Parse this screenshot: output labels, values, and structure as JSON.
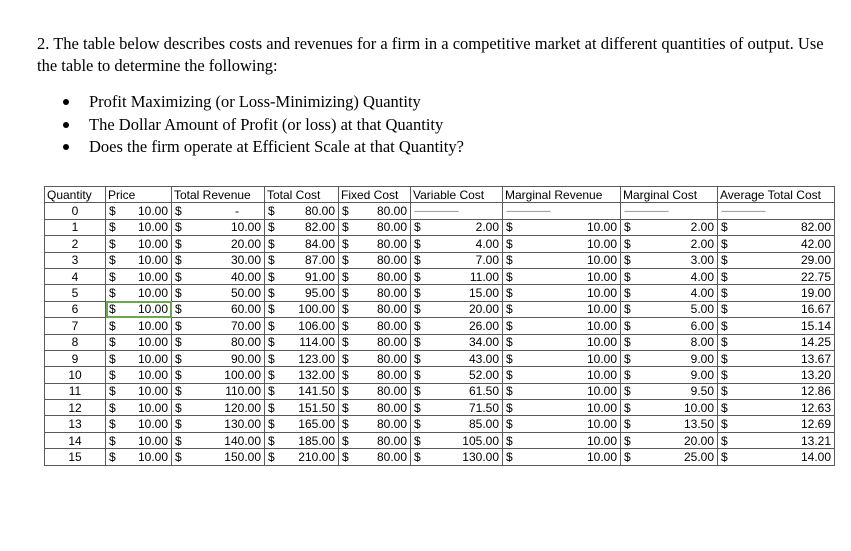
{
  "question": {
    "text": "2. The table below describes costs and revenues for a firm in a competitive market at different quantities of output.  Use the table to determine the following:",
    "bullets": [
      "Profit Maximizing (or Loss-Minimizing) Quantity",
      "The Dollar Amount of Profit (or loss) at that Quantity",
      "Does the firm operate at Efficient Scale at that Quantity?"
    ]
  },
  "table": {
    "headers": [
      "Quantity",
      "Price",
      "Total Revenue",
      "Total Cost",
      "Fixed Cost",
      "Variable Cost",
      "Marginal Revenue",
      "Marginal Cost",
      "Average Total Cost"
    ],
    "currency": "$",
    "blank_marker": "-",
    "dashes": "----------------------",
    "rows": [
      {
        "q": "0",
        "price": "10.00",
        "tr": "",
        "tc": "80.00",
        "fc": "80.00",
        "vc": "",
        "mr": "",
        "mc": "",
        "atc": ""
      },
      {
        "q": "1",
        "price": "10.00",
        "tr": "10.00",
        "tc": "82.00",
        "fc": "80.00",
        "vc": "2.00",
        "mr": "10.00",
        "mc": "2.00",
        "atc": "82.00"
      },
      {
        "q": "2",
        "price": "10.00",
        "tr": "20.00",
        "tc": "84.00",
        "fc": "80.00",
        "vc": "4.00",
        "mr": "10.00",
        "mc": "2.00",
        "atc": "42.00"
      },
      {
        "q": "3",
        "price": "10.00",
        "tr": "30.00",
        "tc": "87.00",
        "fc": "80.00",
        "vc": "7.00",
        "mr": "10.00",
        "mc": "3.00",
        "atc": "29.00"
      },
      {
        "q": "4",
        "price": "10.00",
        "tr": "40.00",
        "tc": "91.00",
        "fc": "80.00",
        "vc": "11.00",
        "mr": "10.00",
        "mc": "4.00",
        "atc": "22.75"
      },
      {
        "q": "5",
        "price": "10.00",
        "tr": "50.00",
        "tc": "95.00",
        "fc": "80.00",
        "vc": "15.00",
        "mr": "10.00",
        "mc": "4.00",
        "atc": "19.00"
      },
      {
        "q": "6",
        "price": "10.00",
        "tr": "60.00",
        "tc": "100.00",
        "fc": "80.00",
        "vc": "20.00",
        "mr": "10.00",
        "mc": "5.00",
        "atc": "16.67"
      },
      {
        "q": "7",
        "price": "10.00",
        "tr": "70.00",
        "tc": "106.00",
        "fc": "80.00",
        "vc": "26.00",
        "mr": "10.00",
        "mc": "6.00",
        "atc": "15.14"
      },
      {
        "q": "8",
        "price": "10.00",
        "tr": "80.00",
        "tc": "114.00",
        "fc": "80.00",
        "vc": "34.00",
        "mr": "10.00",
        "mc": "8.00",
        "atc": "14.25"
      },
      {
        "q": "9",
        "price": "10.00",
        "tr": "90.00",
        "tc": "123.00",
        "fc": "80.00",
        "vc": "43.00",
        "mr": "10.00",
        "mc": "9.00",
        "atc": "13.67"
      },
      {
        "q": "10",
        "price": "10.00",
        "tr": "100.00",
        "tc": "132.00",
        "fc": "80.00",
        "vc": "52.00",
        "mr": "10.00",
        "mc": "9.00",
        "atc": "13.20"
      },
      {
        "q": "11",
        "price": "10.00",
        "tr": "110.00",
        "tc": "141.50",
        "fc": "80.00",
        "vc": "61.50",
        "mr": "10.00",
        "mc": "9.50",
        "atc": "12.86"
      },
      {
        "q": "12",
        "price": "10.00",
        "tr": "120.00",
        "tc": "151.50",
        "fc": "80.00",
        "vc": "71.50",
        "mr": "10.00",
        "mc": "10.00",
        "atc": "12.63"
      },
      {
        "q": "13",
        "price": "10.00",
        "tr": "130.00",
        "tc": "165.00",
        "fc": "80.00",
        "vc": "85.00",
        "mr": "10.00",
        "mc": "13.50",
        "atc": "12.69"
      },
      {
        "q": "14",
        "price": "10.00",
        "tr": "140.00",
        "tc": "185.00",
        "fc": "80.00",
        "vc": "105.00",
        "mr": "10.00",
        "mc": "20.00",
        "atc": "13.21"
      },
      {
        "q": "15",
        "price": "10.00",
        "tr": "150.00",
        "tc": "210.00",
        "fc": "80.00",
        "vc": "130.00",
        "mr": "10.00",
        "mc": "25.00",
        "atc": "14.00"
      }
    ]
  }
}
